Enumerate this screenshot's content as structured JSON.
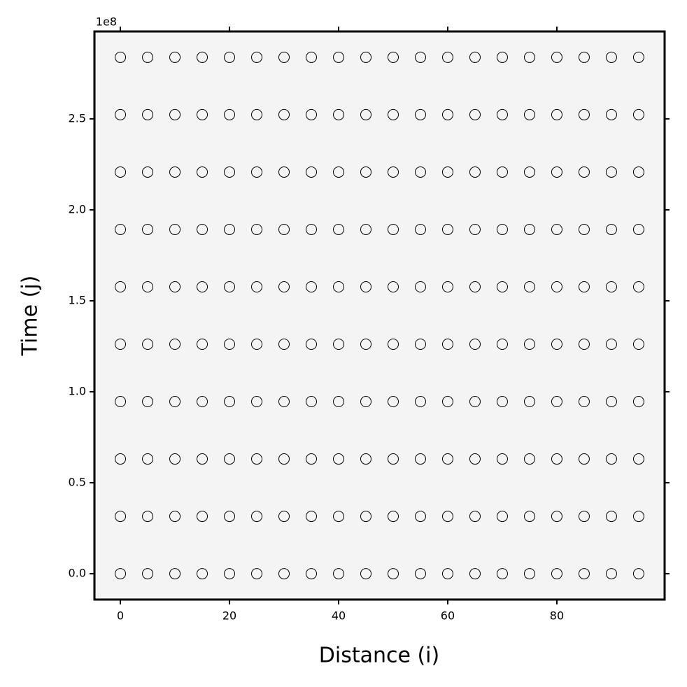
{
  "chart_data": {
    "type": "scatter",
    "x_label": "Distance (i)",
    "y_label": "Time (j)",
    "y_offset_text": "1e8",
    "xlim": [
      -4.75,
      99.75
    ],
    "ylim": [
      -14191200,
      298015200
    ],
    "xticks": [
      0,
      20,
      40,
      60,
      80
    ],
    "yticks": [
      {
        "value": 0,
        "label": "0.0"
      },
      {
        "value": 50000000,
        "label": "0.5"
      },
      {
        "value": 100000000,
        "label": "1.0"
      },
      {
        "value": 150000000,
        "label": "1.5"
      },
      {
        "value": 200000000,
        "label": "2.0"
      },
      {
        "value": 250000000,
        "label": "2.5"
      }
    ],
    "marker_edge_color": "#000000",
    "background": "#f4f4f4",
    "x": [
      0,
      5,
      10,
      15,
      20,
      25,
      30,
      35,
      40,
      45,
      50,
      55,
      60,
      65,
      70,
      75,
      80,
      85,
      90,
      95,
      0,
      5,
      10,
      15,
      20,
      25,
      30,
      35,
      40,
      45,
      50,
      55,
      60,
      65,
      70,
      75,
      80,
      85,
      90,
      95,
      0,
      5,
      10,
      15,
      20,
      25,
      30,
      35,
      40,
      45,
      50,
      55,
      60,
      65,
      70,
      75,
      80,
      85,
      90,
      95,
      0,
      5,
      10,
      15,
      20,
      25,
      30,
      35,
      40,
      45,
      50,
      55,
      60,
      65,
      70,
      75,
      80,
      85,
      90,
      95,
      0,
      5,
      10,
      15,
      20,
      25,
      30,
      35,
      40,
      45,
      50,
      55,
      60,
      65,
      70,
      75,
      80,
      85,
      90,
      95,
      0,
      5,
      10,
      15,
      20,
      25,
      30,
      35,
      40,
      45,
      50,
      55,
      60,
      65,
      70,
      75,
      80,
      85,
      90,
      95,
      0,
      5,
      10,
      15,
      20,
      25,
      30,
      35,
      40,
      45,
      50,
      55,
      60,
      65,
      70,
      75,
      80,
      85,
      90,
      95,
      0,
      5,
      10,
      15,
      20,
      25,
      30,
      35,
      40,
      45,
      50,
      55,
      60,
      65,
      70,
      75,
      80,
      85,
      90,
      95,
      0,
      5,
      10,
      15,
      20,
      25,
      30,
      35,
      40,
      45,
      50,
      55,
      60,
      65,
      70,
      75,
      80,
      85,
      90,
      95,
      0,
      5,
      10,
      15,
      20,
      25,
      30,
      35,
      40,
      45,
      50,
      55,
      60,
      65,
      70,
      75,
      80,
      85,
      90,
      95
    ],
    "values": [
      0,
      0,
      0,
      0,
      0,
      0,
      0,
      0,
      0,
      0,
      0,
      0,
      0,
      0,
      0,
      0,
      0,
      0,
      0,
      0,
      31536000,
      31536000,
      31536000,
      31536000,
      31536000,
      31536000,
      31536000,
      31536000,
      31536000,
      31536000,
      31536000,
      31536000,
      31536000,
      31536000,
      31536000,
      31536000,
      31536000,
      31536000,
      31536000,
      31536000,
      63072000,
      63072000,
      63072000,
      63072000,
      63072000,
      63072000,
      63072000,
      63072000,
      63072000,
      63072000,
      63072000,
      63072000,
      63072000,
      63072000,
      63072000,
      63072000,
      63072000,
      63072000,
      63072000,
      63072000,
      94608000,
      94608000,
      94608000,
      94608000,
      94608000,
      94608000,
      94608000,
      94608000,
      94608000,
      94608000,
      94608000,
      94608000,
      94608000,
      94608000,
      94608000,
      94608000,
      94608000,
      94608000,
      94608000,
      94608000,
      126144000,
      126144000,
      126144000,
      126144000,
      126144000,
      126144000,
      126144000,
      126144000,
      126144000,
      126144000,
      126144000,
      126144000,
      126144000,
      126144000,
      126144000,
      126144000,
      126144000,
      126144000,
      126144000,
      126144000,
      157680000,
      157680000,
      157680000,
      157680000,
      157680000,
      157680000,
      157680000,
      157680000,
      157680000,
      157680000,
      157680000,
      157680000,
      157680000,
      157680000,
      157680000,
      157680000,
      157680000,
      157680000,
      157680000,
      157680000,
      189216000,
      189216000,
      189216000,
      189216000,
      189216000,
      189216000,
      189216000,
      189216000,
      189216000,
      189216000,
      189216000,
      189216000,
      189216000,
      189216000,
      189216000,
      189216000,
      189216000,
      189216000,
      189216000,
      189216000,
      220752000,
      220752000,
      220752000,
      220752000,
      220752000,
      220752000,
      220752000,
      220752000,
      220752000,
      220752000,
      220752000,
      220752000,
      220752000,
      220752000,
      220752000,
      220752000,
      220752000,
      220752000,
      220752000,
      220752000,
      252288000,
      252288000,
      252288000,
      252288000,
      252288000,
      252288000,
      252288000,
      252288000,
      252288000,
      252288000,
      252288000,
      252288000,
      252288000,
      252288000,
      252288000,
      252288000,
      252288000,
      252288000,
      252288000,
      252288000,
      283824000,
      283824000,
      283824000,
      283824000,
      283824000,
      283824000,
      283824000,
      283824000,
      283824000,
      283824000,
      283824000,
      283824000,
      283824000,
      283824000,
      283824000,
      283824000,
      283824000,
      283824000,
      283824000,
      283824000
    ]
  }
}
